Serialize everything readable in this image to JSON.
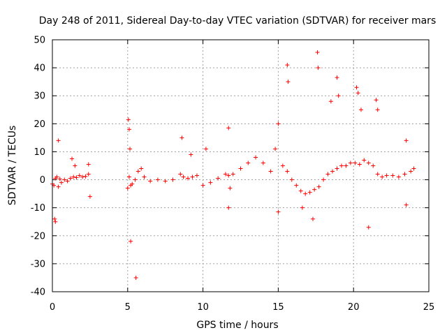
{
  "chart_data": {
    "type": "scatter",
    "title": "Day 248 of 2011, Sidereal Day-to-day VTEC variation (SDTVAR) for receiver mars",
    "xlabel": "GPS time / hours",
    "ylabel": "SDTVAR / TECUs",
    "xlim": [
      0,
      25
    ],
    "ylim": [
      -40,
      50
    ],
    "xticks": [
      0,
      5,
      10,
      15,
      20,
      25
    ],
    "yticks": [
      -40,
      -30,
      -20,
      -10,
      0,
      10,
      20,
      30,
      40,
      50
    ],
    "grid": true,
    "marker": "+",
    "color": "#ff0000",
    "series": [
      {
        "name": "SDTVAR",
        "x": [
          0.0,
          0.1,
          0.2,
          0.3,
          0.4,
          0.5,
          0.6,
          0.8,
          1.0,
          1.2,
          1.4,
          1.6,
          1.8,
          2.0,
          2.2,
          2.4,
          0.15,
          0.2,
          0.4,
          1.3,
          1.5,
          2.4,
          2.5,
          5.0,
          5.1,
          5.2,
          5.3,
          5.5,
          5.7,
          5.9,
          6.1,
          5.05,
          5.1,
          5.15,
          5.2,
          5.55,
          6.5,
          7.0,
          7.5,
          8.0,
          8.5,
          8.7,
          9.0,
          9.3,
          9.6,
          10.0,
          10.5,
          11.0,
          11.5,
          11.7,
          11.8,
          12.0,
          12.5,
          13.0,
          13.5,
          14.0,
          14.5,
          8.6,
          9.2,
          10.2,
          11.7,
          11.7,
          15.0,
          15.3,
          15.6,
          15.9,
          16.2,
          16.5,
          16.8,
          17.1,
          17.4,
          17.7,
          18.0,
          18.3,
          18.6,
          18.9,
          19.2,
          19.5,
          19.8,
          20.1,
          20.4,
          20.7,
          21.0,
          21.3,
          21.6,
          21.9,
          22.2,
          22.6,
          23.0,
          23.4,
          23.8,
          24.0,
          14.8,
          15.0,
          15.6,
          15.65,
          16.6,
          17.3,
          17.6,
          17.65,
          18.5,
          18.9,
          19.0,
          20.2,
          20.3,
          20.5,
          21.0,
          21.5,
          21.6,
          23.5,
          23.5
        ],
        "y": [
          -1.5,
          -2.0,
          0.5,
          1.0,
          -2.5,
          0.3,
          -1.0,
          0.0,
          -0.5,
          0.5,
          1.0,
          0.8,
          1.5,
          1.0,
          1.2,
          2.0,
          -14.0,
          -15.0,
          14.0,
          7.5,
          5.0,
          5.5,
          -6.0,
          -3.0,
          1.0,
          -2.0,
          -1.5,
          0.0,
          3.0,
          4.0,
          1.0,
          21.5,
          18.0,
          11.0,
          -22.0,
          -35.0,
          -0.5,
          0.0,
          -0.5,
          0.0,
          2.0,
          1.0,
          0.5,
          1.0,
          1.5,
          -2.0,
          -1.0,
          0.5,
          2.0,
          1.5,
          -3.0,
          2.0,
          4.0,
          6.0,
          8.0,
          6.0,
          3.0,
          15.0,
          9.0,
          11.0,
          18.5,
          -10.0,
          20.0,
          5.0,
          3.0,
          0.0,
          -2.0,
          -4.0,
          -5.0,
          -4.5,
          -3.5,
          -2.5,
          0.0,
          2.0,
          3.0,
          4.0,
          5.0,
          5.0,
          6.0,
          6.0,
          5.5,
          7.0,
          6.0,
          5.0,
          2.0,
          1.0,
          1.5,
          1.5,
          1.0,
          2.0,
          3.0,
          4.0,
          11.0,
          -11.5,
          41.0,
          35.0,
          -10.0,
          -14.0,
          45.5,
          40.0,
          28.0,
          36.5,
          30.0,
          33.0,
          31.0,
          25.0,
          -17.0,
          28.5,
          25.0,
          14.0,
          -9.0
        ]
      }
    ]
  }
}
